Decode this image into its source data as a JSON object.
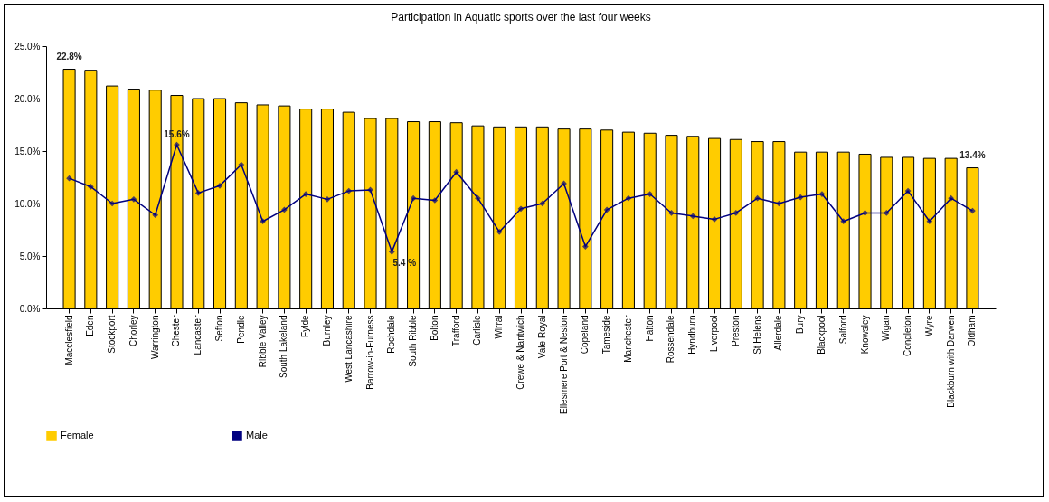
{
  "chart_data": {
    "type": "bar",
    "title": "Participation in Aquatic sports over the last four weeks",
    "categories": [
      "Macclesfield",
      "Eden",
      "Stockport",
      "Chorley",
      "Warrington",
      "Chester",
      "Lancaster",
      "Sefton",
      "Pendle",
      "Ribble Valley",
      "South Lakeland",
      "Fylde",
      "Burnley",
      "West Lancashire",
      "Barrow-in-Furness",
      "Rochdale",
      "South Ribble",
      "Bolton",
      "Trafford",
      "Carlisle",
      "Wirral",
      "Crewe & Nantwich",
      "Vale Royal",
      "Ellesmere Port & Neston",
      "Copeland",
      "Tameside",
      "Manchester",
      "Halton",
      "Rossendale",
      "Hyndburn",
      "Liverpool",
      "Preston",
      "St Helens",
      "Allerdale",
      "Bury",
      "Blackpool",
      "Salford",
      "Knowsley",
      "Wigan",
      "Congleton",
      "Wyre",
      "Blackburn with Darwen",
      "Oldham"
    ],
    "series": [
      {
        "name": "Female",
        "color": "#ffcc00",
        "values": [
          22.8,
          22.7,
          21.2,
          20.9,
          20.8,
          20.3,
          20.0,
          20.0,
          19.6,
          19.4,
          19.3,
          19.0,
          19.0,
          18.7,
          18.1,
          18.1,
          17.8,
          17.8,
          17.7,
          17.4,
          17.3,
          17.3,
          17.3,
          17.1,
          17.1,
          17.0,
          16.8,
          16.7,
          16.5,
          16.4,
          16.2,
          16.1,
          15.9,
          15.9,
          14.9,
          14.9,
          14.9,
          14.7,
          14.4,
          14.4,
          14.3,
          14.3,
          13.4
        ],
        "value_labels": [
          "22.8%",
          null,
          null,
          null,
          null,
          null,
          null,
          null,
          null,
          null,
          null,
          null,
          null,
          null,
          null,
          null,
          null,
          null,
          null,
          null,
          null,
          null,
          null,
          null,
          null,
          null,
          null,
          null,
          null,
          null,
          null,
          null,
          null,
          null,
          null,
          null,
          null,
          null,
          null,
          null,
          null,
          null,
          "13.4%"
        ]
      },
      {
        "name": "Male",
        "type": "line",
        "color": "#000080",
        "values": [
          12.4,
          11.6,
          10.0,
          10.4,
          8.9,
          15.6,
          11.0,
          11.7,
          13.7,
          8.3,
          9.4,
          10.9,
          10.4,
          11.2,
          11.3,
          5.4,
          10.5,
          10.3,
          13.0,
          10.5,
          7.3,
          9.5,
          10.0,
          11.9,
          5.9,
          9.4,
          10.5,
          10.9,
          9.1,
          8.8,
          8.5,
          9.1,
          10.5,
          10.0,
          10.6,
          10.9,
          8.3,
          9.1,
          9.1,
          11.2,
          8.3,
          10.5,
          9.3
        ],
        "value_labels": [
          null,
          null,
          null,
          null,
          null,
          "15.6%",
          null,
          null,
          null,
          null,
          null,
          null,
          null,
          null,
          null,
          "5.4 %",
          null,
          null,
          null,
          null,
          null,
          null,
          null,
          null,
          null,
          null,
          null,
          null,
          null,
          null,
          null,
          null,
          null,
          null,
          null,
          null,
          null,
          null,
          null,
          null,
          null,
          null,
          null
        ]
      }
    ],
    "ylim": [
      0,
      25
    ],
    "yticks": [
      {
        "value": 0,
        "label": "0.0%"
      },
      {
        "value": 5,
        "label": "5.0%"
      },
      {
        "value": 10,
        "label": "10.0%"
      },
      {
        "value": 15,
        "label": "15.0%"
      },
      {
        "value": 20,
        "label": "20.0%"
      },
      {
        "value": 25,
        "label": "25.0%"
      }
    ],
    "grid": false,
    "legend": "bottom",
    "marker": "diamond",
    "line_style": "solid"
  }
}
